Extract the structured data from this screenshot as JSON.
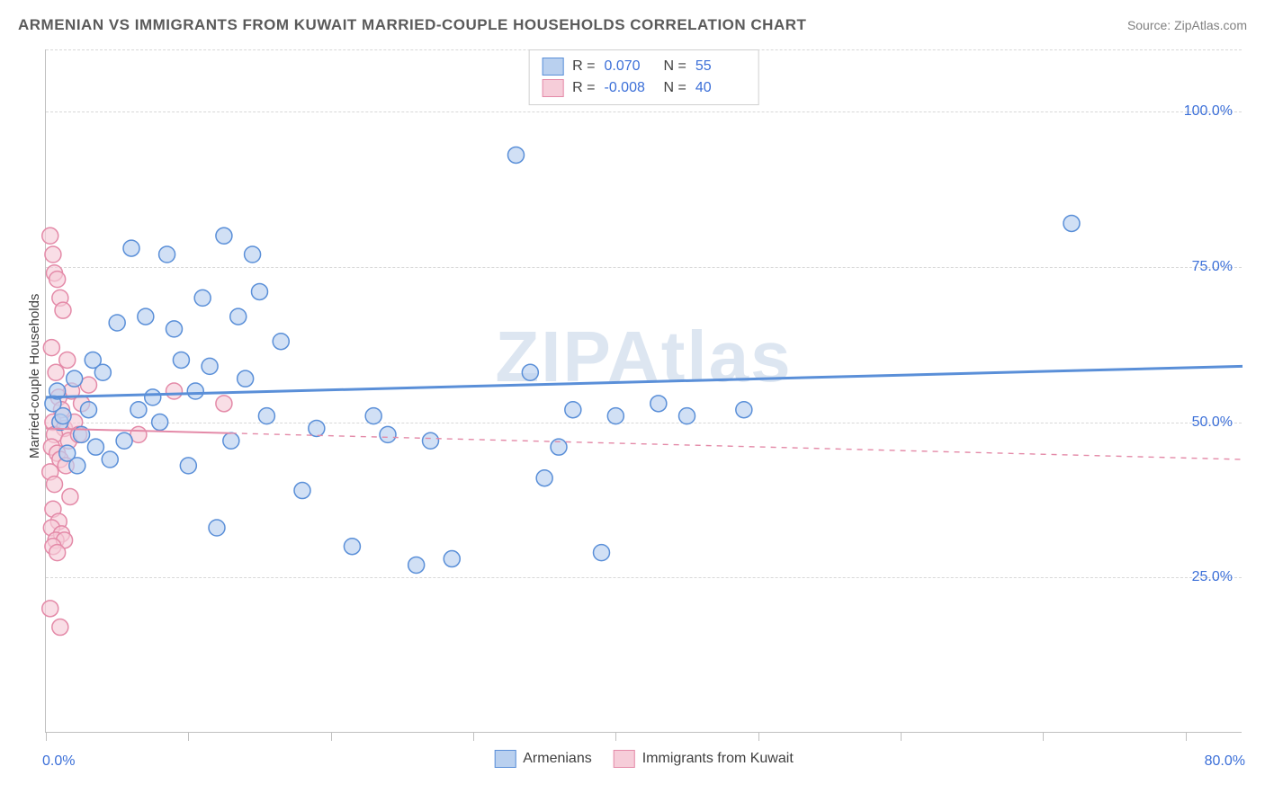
{
  "title": "ARMENIAN VS IMMIGRANTS FROM KUWAIT MARRIED-COUPLE HOUSEHOLDS CORRELATION CHART",
  "source": "Source: ZipAtlas.com",
  "ylabel": "Married-couple Households",
  "watermark": "ZIPAtlas",
  "chart": {
    "type": "scatter",
    "xlim": [
      0,
      84
    ],
    "ylim": [
      0,
      110
    ],
    "background_color": "#ffffff",
    "grid_color": "#d8d8d8",
    "grid_dash": "4,4",
    "y_gridlines": [
      25,
      50,
      75,
      100
    ],
    "y_tick_labels": [
      "25.0%",
      "50.0%",
      "75.0%",
      "100.0%"
    ],
    "x_ticks": [
      0,
      10,
      20,
      30,
      40,
      50,
      60,
      70,
      80
    ],
    "x_min_label": "0.0%",
    "x_max_label": "80.0%",
    "marker_radius": 9,
    "marker_stroke_width": 1.5,
    "marker_fill_opacity": 0.35,
    "series": [
      {
        "name": "Armenians",
        "color": "#5a8fd8",
        "fill": "#b9d0ef",
        "R": "0.070",
        "N": "55",
        "trend": {
          "y_at_xmin": 54.0,
          "y_at_xmax": 59.0,
          "solid_until_x": 84,
          "width": 3
        },
        "points": [
          [
            0.5,
            53
          ],
          [
            0.8,
            55
          ],
          [
            1.0,
            50
          ],
          [
            1.2,
            51
          ],
          [
            1.5,
            45
          ],
          [
            2.0,
            57
          ],
          [
            2.2,
            43
          ],
          [
            2.5,
            48
          ],
          [
            3.0,
            52
          ],
          [
            3.3,
            60
          ],
          [
            3.5,
            46
          ],
          [
            4.0,
            58
          ],
          [
            4.5,
            44
          ],
          [
            5.0,
            66
          ],
          [
            5.5,
            47
          ],
          [
            6.0,
            78
          ],
          [
            6.5,
            52
          ],
          [
            7.0,
            67
          ],
          [
            7.5,
            54
          ],
          [
            8.0,
            50
          ],
          [
            8.5,
            77
          ],
          [
            9.0,
            65
          ],
          [
            9.5,
            60
          ],
          [
            10.0,
            43
          ],
          [
            10.5,
            55
          ],
          [
            11.0,
            70
          ],
          [
            11.5,
            59
          ],
          [
            12.0,
            33
          ],
          [
            12.5,
            80
          ],
          [
            13.0,
            47
          ],
          [
            13.5,
            67
          ],
          [
            14.0,
            57
          ],
          [
            14.5,
            77
          ],
          [
            15.0,
            71
          ],
          [
            15.5,
            51
          ],
          [
            16.5,
            63
          ],
          [
            18.0,
            39
          ],
          [
            19.0,
            49
          ],
          [
            21.5,
            30
          ],
          [
            23.0,
            51
          ],
          [
            24.0,
            48
          ],
          [
            26.0,
            27
          ],
          [
            27.0,
            47
          ],
          [
            28.5,
            28
          ],
          [
            33.0,
            93
          ],
          [
            34.0,
            58
          ],
          [
            35.0,
            41
          ],
          [
            36.0,
            46
          ],
          [
            37.0,
            52
          ],
          [
            39.0,
            29
          ],
          [
            40.0,
            51
          ],
          [
            43.0,
            53
          ],
          [
            45.0,
            51
          ],
          [
            49.0,
            52
          ],
          [
            72.0,
            82
          ]
        ]
      },
      {
        "name": "Immigrants from Kuwait",
        "color": "#e48aa8",
        "fill": "#f6cdd9",
        "R": "-0.008",
        "N": "40",
        "trend": {
          "y_at_xmin": 49.0,
          "y_at_xmax": 44.0,
          "solid_until_x": 13,
          "width": 2
        },
        "points": [
          [
            0.3,
            80
          ],
          [
            0.5,
            77
          ],
          [
            0.6,
            74
          ],
          [
            0.8,
            73
          ],
          [
            1.0,
            70
          ],
          [
            1.2,
            68
          ],
          [
            0.4,
            62
          ],
          [
            0.7,
            58
          ],
          [
            1.5,
            60
          ],
          [
            1.8,
            55
          ],
          [
            0.9,
            54
          ],
          [
            1.1,
            52
          ],
          [
            0.5,
            50
          ],
          [
            1.3,
            49
          ],
          [
            0.6,
            48
          ],
          [
            1.6,
            47
          ],
          [
            2.0,
            50
          ],
          [
            2.3,
            48
          ],
          [
            0.4,
            46
          ],
          [
            0.8,
            45
          ],
          [
            1.0,
            44
          ],
          [
            1.4,
            43
          ],
          [
            0.3,
            42
          ],
          [
            0.6,
            40
          ],
          [
            1.7,
            38
          ],
          [
            0.5,
            36
          ],
          [
            0.9,
            34
          ],
          [
            0.4,
            33
          ],
          [
            1.1,
            32
          ],
          [
            0.7,
            31
          ],
          [
            1.3,
            31
          ],
          [
            0.5,
            30
          ],
          [
            0.8,
            29
          ],
          [
            0.3,
            20
          ],
          [
            1.0,
            17
          ],
          [
            2.5,
            53
          ],
          [
            3.0,
            56
          ],
          [
            6.5,
            48
          ],
          [
            9.0,
            55
          ],
          [
            12.5,
            53
          ]
        ]
      }
    ]
  },
  "stats_legend": {
    "r_label": "R =",
    "n_label": "N ="
  },
  "colors": {
    "title": "#5a5a5a",
    "source": "#808080",
    "axis_num": "#3b6fd8",
    "axis_label": "#404040"
  }
}
